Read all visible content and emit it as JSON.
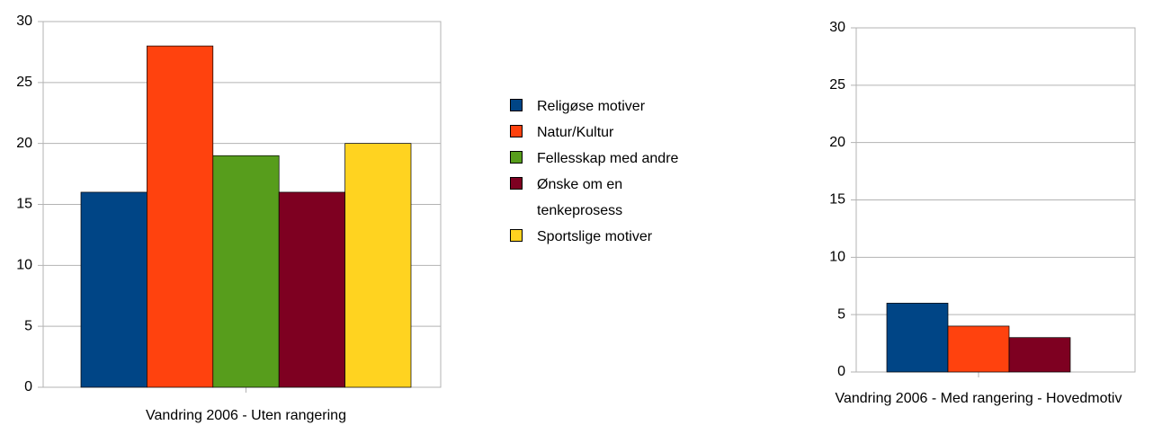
{
  "chart_data": [
    {
      "type": "bar",
      "categories": [
        "Vandring 2006 - Uten rangering"
      ],
      "series": [
        {
          "name": "Religøse motiver",
          "color": "#004586",
          "values": [
            16
          ]
        },
        {
          "name": "Natur/Kultur",
          "color": "#ff420e",
          "values": [
            28
          ]
        },
        {
          "name": "Fellesskap med andre",
          "color": "#579d1c",
          "values": [
            19
          ]
        },
        {
          "name": "Ønske om en tenkeprosess",
          "color": "#7e0021",
          "values": [
            16
          ]
        },
        {
          "name": "Sportslige motiver",
          "color": "#ffd320",
          "values": [
            20
          ]
        }
      ],
      "ylim": [
        0,
        30
      ],
      "yticks": [
        0,
        5,
        10,
        15,
        20,
        25,
        30
      ],
      "grid": true,
      "legend": "right"
    },
    {
      "type": "bar",
      "categories": [
        "Vandring 2006 - Med rangering - Hovedmotiv"
      ],
      "series": [
        {
          "color": "#004586",
          "values": [
            6
          ]
        },
        {
          "color": "#ff420e",
          "values": [
            4
          ]
        },
        {
          "color": "#7e0021",
          "values": [
            3
          ]
        }
      ],
      "ylim": [
        0,
        30
      ],
      "yticks": [
        0,
        5,
        10,
        15,
        20,
        25,
        30
      ],
      "grid": true
    }
  ]
}
